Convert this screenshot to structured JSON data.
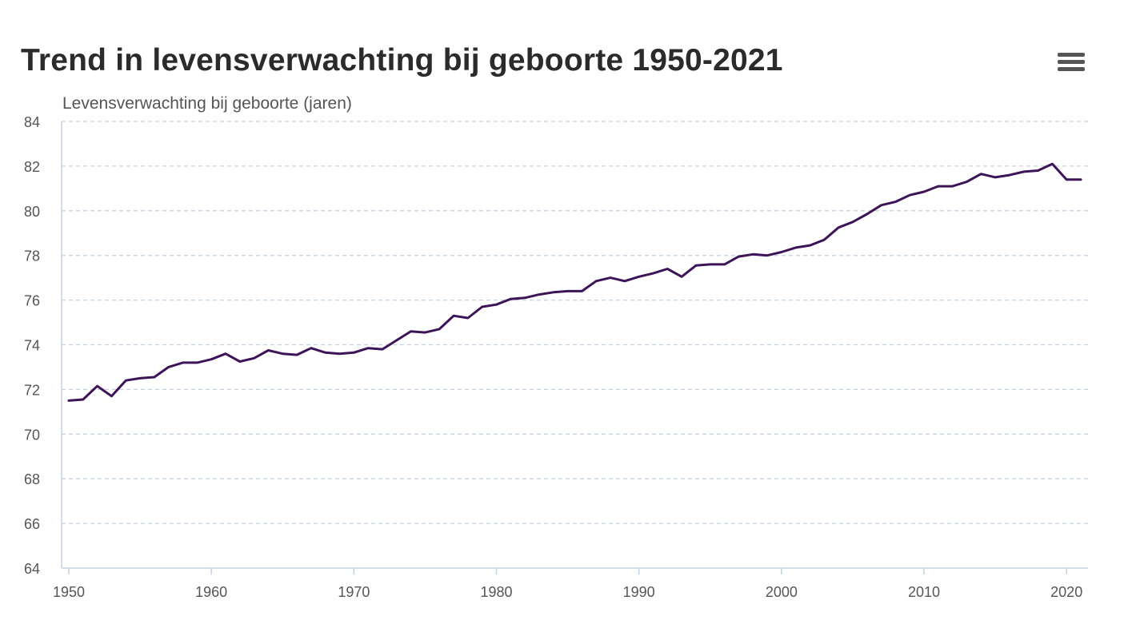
{
  "toolbar": {
    "menu_icon": "hamburger-menu-icon"
  },
  "colors": {
    "line": "#3d1457",
    "grid": "#c5d3e0",
    "axis": "#c5d3e0",
    "title": "#2b2b2b",
    "labels": "#555555"
  },
  "chart_data": {
    "type": "line",
    "title": "Trend in levensverwachting bij geboorte 1950-2021",
    "xlabel": "",
    "ylabel": "Levensverwachting bij geboorte (jaren)",
    "xlim": [
      1950,
      2021
    ],
    "ylim": [
      64,
      84
    ],
    "xticks": [
      1950,
      1960,
      1970,
      1980,
      1990,
      2000,
      2010,
      2020
    ],
    "yticks": [
      64,
      66,
      68,
      70,
      72,
      74,
      76,
      78,
      80,
      82,
      84
    ],
    "grid": true,
    "legend": "none",
    "x": [
      1950,
      1951,
      1952,
      1953,
      1954,
      1955,
      1956,
      1957,
      1958,
      1959,
      1960,
      1961,
      1962,
      1963,
      1964,
      1965,
      1966,
      1967,
      1968,
      1969,
      1970,
      1971,
      1972,
      1973,
      1974,
      1975,
      1976,
      1977,
      1978,
      1979,
      1980,
      1981,
      1982,
      1983,
      1984,
      1985,
      1986,
      1987,
      1988,
      1989,
      1990,
      1991,
      1992,
      1993,
      1994,
      1995,
      1996,
      1997,
      1998,
      1999,
      2000,
      2001,
      2002,
      2003,
      2004,
      2005,
      2006,
      2007,
      2008,
      2009,
      2010,
      2011,
      2012,
      2013,
      2014,
      2015,
      2016,
      2017,
      2018,
      2019,
      2020,
      2021
    ],
    "series": [
      {
        "values": [
          71.5,
          71.55,
          72.15,
          71.7,
          72.4,
          72.5,
          72.55,
          73.0,
          73.2,
          73.2,
          73.35,
          73.6,
          73.25,
          73.4,
          73.75,
          73.6,
          73.55,
          73.85,
          73.65,
          73.6,
          73.65,
          73.85,
          73.8,
          74.2,
          74.6,
          74.55,
          74.7,
          75.3,
          75.2,
          75.7,
          75.8,
          76.05,
          76.1,
          76.25,
          76.35,
          76.4,
          76.4,
          76.85,
          77.0,
          76.85,
          77.05,
          77.2,
          77.4,
          77.05,
          77.55,
          77.6,
          77.6,
          77.95,
          78.05,
          78.0,
          78.15,
          78.35,
          78.45,
          78.7,
          79.25,
          79.5,
          79.85,
          80.25,
          80.4,
          80.7,
          80.85,
          81.1,
          81.1,
          81.3,
          81.65,
          81.5,
          81.6,
          81.75,
          81.8,
          82.1,
          81.4,
          81.4
        ]
      }
    ]
  }
}
